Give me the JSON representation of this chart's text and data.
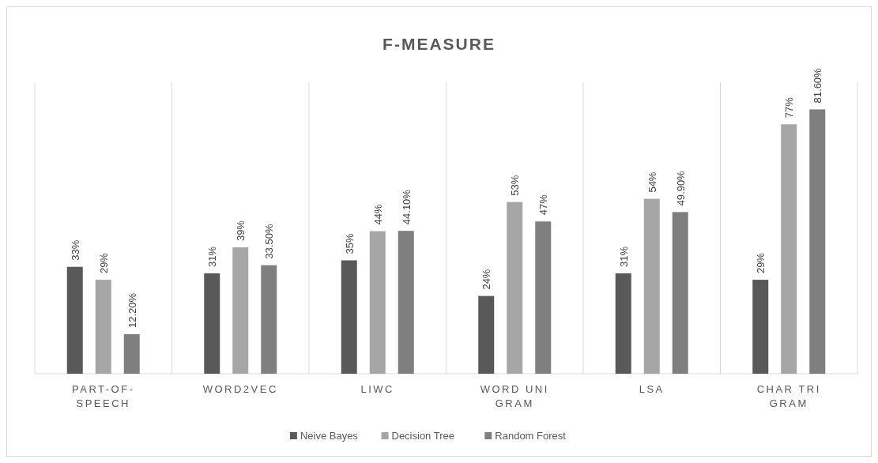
{
  "chart_data": {
    "type": "bar",
    "title": "F-MEASURE",
    "categories": [
      "PART-OF-SPEECH",
      "WORD2VEC",
      "LIWC",
      "WORD UNI GRAM",
      "LSA",
      "CHAR TRI GRAM"
    ],
    "series": [
      {
        "name": "Neive Bayes",
        "color": "#595959",
        "values": [
          33,
          31,
          35,
          24,
          31,
          29
        ],
        "value_labels": [
          "33%",
          "31%",
          "35%",
          "24%",
          "31%",
          "29%"
        ]
      },
      {
        "name": "Decision Tree",
        "color": "#a6a6a6",
        "values": [
          29,
          39,
          44,
          53,
          54,
          77
        ],
        "value_labels": [
          "29%",
          "39%",
          "44%",
          "53%",
          "54%",
          "77%"
        ]
      },
      {
        "name": "Random Forest",
        "color": "#7f7f7f",
        "values": [
          12.2,
          33.5,
          44.1,
          47,
          49.9,
          81.6
        ],
        "value_labels": [
          "12.20%",
          "33.50%",
          "44.10%",
          "47%",
          "49.90%",
          "81.60%"
        ]
      }
    ],
    "ylim": [
      0,
      90
    ],
    "grid": "x",
    "legend": "bottom",
    "tick_labels": "x"
  }
}
